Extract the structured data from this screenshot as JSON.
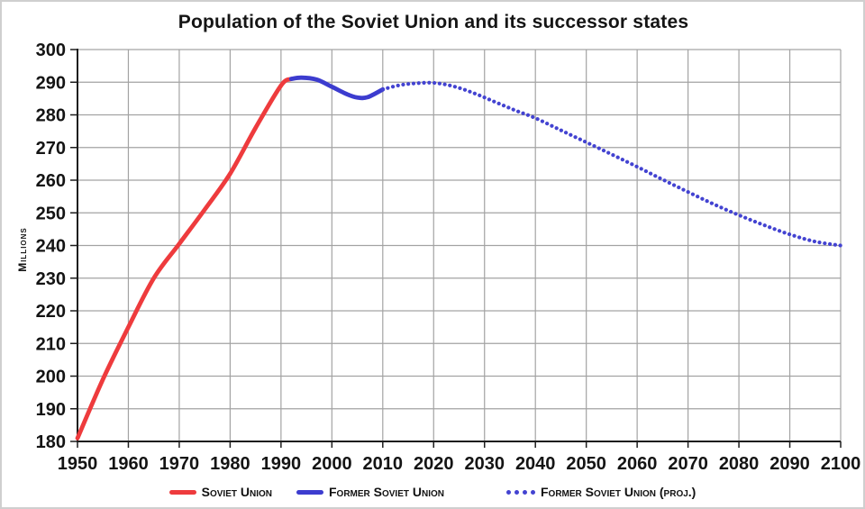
{
  "chart_data": {
    "type": "line",
    "title": "Population of the Soviet Union and its successor states",
    "xlabel": "",
    "ylabel": "Millions",
    "x_range": [
      1950,
      2100
    ],
    "y_range": [
      180,
      300
    ],
    "x_ticks": [
      1950,
      1960,
      1970,
      1980,
      1990,
      2000,
      2010,
      2020,
      2030,
      2040,
      2050,
      2060,
      2070,
      2080,
      2090,
      2100
    ],
    "y_ticks": [
      180,
      190,
      200,
      210,
      220,
      230,
      240,
      250,
      260,
      270,
      280,
      290,
      300
    ],
    "grid": true,
    "grid_color": "#a3a3a3",
    "axis_color": "#1c1c1c",
    "legend_position": "bottom",
    "series": [
      {
        "name": "Soviet Union",
        "color": "#ee3b3d",
        "style": "solid",
        "points": [
          [
            1950,
            181
          ],
          [
            1955,
            199
          ],
          [
            1960,
            215
          ],
          [
            1965,
            230
          ],
          [
            1970,
            240.5
          ],
          [
            1975,
            251
          ],
          [
            1980,
            262
          ],
          [
            1985,
            276
          ],
          [
            1990,
            289
          ],
          [
            1992,
            291
          ]
        ]
      },
      {
        "name": "Former Soviet Union",
        "color": "#3c3ccf",
        "style": "solid",
        "points": [
          [
            1992,
            291
          ],
          [
            1994,
            291.4
          ],
          [
            1997,
            290.8
          ],
          [
            2000,
            288.6
          ],
          [
            2003,
            286.3
          ],
          [
            2005,
            285.3
          ],
          [
            2007,
            285.4
          ],
          [
            2010,
            287.8
          ]
        ]
      },
      {
        "name": "Former Soviet Union (proj.)",
        "color": "#4343d1",
        "style": "dotted",
        "points": [
          [
            2010,
            287.8
          ],
          [
            2013,
            289.0
          ],
          [
            2016,
            289.6
          ],
          [
            2020,
            289.8
          ],
          [
            2024,
            288.7
          ],
          [
            2028,
            286.6
          ],
          [
            2032,
            284.0
          ],
          [
            2036,
            281.4
          ],
          [
            2040,
            279.0
          ],
          [
            2045,
            275.3
          ],
          [
            2050,
            271.6
          ],
          [
            2055,
            267.9
          ],
          [
            2060,
            264.1
          ],
          [
            2065,
            260.2
          ],
          [
            2070,
            256.4
          ],
          [
            2075,
            252.7
          ],
          [
            2080,
            249.3
          ],
          [
            2085,
            246.2
          ],
          [
            2090,
            243.4
          ],
          [
            2095,
            241.2
          ],
          [
            2100,
            240.0
          ]
        ]
      }
    ]
  },
  "legend": [
    {
      "label": "Soviet Union",
      "color": "#ee3b3d",
      "style": "solid"
    },
    {
      "label": "Former Soviet Union",
      "color": "#3c3ccf",
      "style": "solid"
    },
    {
      "label": "Former Soviet Union (proj.)",
      "color": "#4343d1",
      "style": "dotted"
    }
  ]
}
